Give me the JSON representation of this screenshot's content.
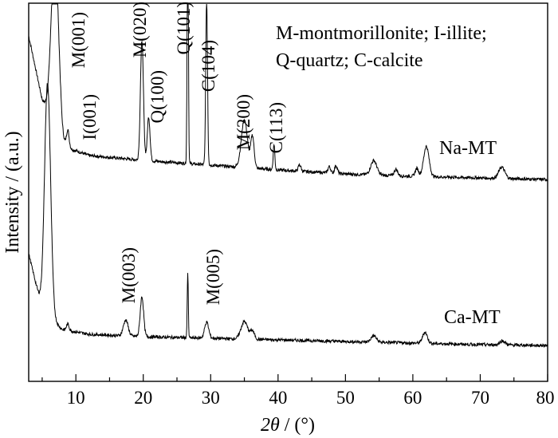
{
  "chart_data": {
    "type": "line",
    "xlabel": "2θ / (°)",
    "xlabel_parts": {
      "symbol": "2",
      "theta": "θ",
      "unit": " / (°)"
    },
    "ylabel": "Intensity / (a.u.)",
    "xlim": [
      3,
      80
    ],
    "xticks": [
      10,
      20,
      30,
      40,
      50,
      60,
      70,
      80
    ],
    "grid": false,
    "legend_text": {
      "line1": "M-montmorillonite; I-illite;",
      "line2": "Q-quartz; C-calcite"
    },
    "series": [
      {
        "name": "Na-MT",
        "baseline": [
          [
            3,
            180
          ],
          [
            5,
            100
          ],
          [
            8,
            42
          ],
          [
            12,
            30
          ],
          [
            20,
            24
          ],
          [
            30,
            18
          ],
          [
            40,
            12
          ],
          [
            50,
            7
          ],
          [
            60,
            4
          ],
          [
            70,
            2
          ],
          [
            80,
            0
          ]
        ],
        "peaks": [
          {
            "x": 6.9,
            "h": 220,
            "w": 0.55,
            "label": "M(001)"
          },
          {
            "x": 8.8,
            "h": 22,
            "w": 0.2,
            "label": "I(001)"
          },
          {
            "x": 19.8,
            "h": 150,
            "w": 0.22,
            "label": "M(020)"
          },
          {
            "x": 20.8,
            "h": 55,
            "w": 0.2,
            "label": "Q(100)"
          },
          {
            "x": 26.6,
            "h": 330,
            "w": 0.09,
            "label": "Q(101)"
          },
          {
            "x": 29.4,
            "h": 210,
            "w": 0.13,
            "label": "C(104)"
          },
          {
            "x": 35.0,
            "h": 60,
            "w": 0.45,
            "label": "M(200)"
          },
          {
            "x": 36.2,
            "h": 40,
            "w": 0.25
          },
          {
            "x": 39.4,
            "h": 32,
            "w": 0.12,
            "label": "C(113)"
          },
          {
            "x": 43.2,
            "h": 8,
            "w": 0.2
          },
          {
            "x": 47.6,
            "h": 8,
            "w": 0.2
          },
          {
            "x": 48.6,
            "h": 10,
            "w": 0.2
          },
          {
            "x": 54.2,
            "h": 18,
            "w": 0.45
          },
          {
            "x": 57.5,
            "h": 8,
            "w": 0.25
          },
          {
            "x": 60.6,
            "h": 10,
            "w": 0.25
          },
          {
            "x": 62.0,
            "h": 38,
            "w": 0.4
          },
          {
            "x": 73.2,
            "h": 14,
            "w": 0.45
          }
        ]
      },
      {
        "name": "Ca-MT",
        "baseline": [
          [
            3,
            115
          ],
          [
            5,
            45
          ],
          [
            8,
            20
          ],
          [
            12,
            14
          ],
          [
            20,
            11
          ],
          [
            30,
            9
          ],
          [
            40,
            7
          ],
          [
            50,
            5
          ],
          [
            60,
            3
          ],
          [
            70,
            1
          ],
          [
            80,
            0
          ]
        ],
        "peaks": [
          {
            "x": 5.8,
            "h": 290,
            "w": 0.45
          },
          {
            "x": 8.8,
            "h": 8,
            "w": 0.2
          },
          {
            "x": 17.4,
            "h": 20,
            "w": 0.35,
            "label": "M(003)"
          },
          {
            "x": 19.8,
            "h": 50,
            "w": 0.25
          },
          {
            "x": 26.6,
            "h": 80,
            "w": 0.08
          },
          {
            "x": 29.4,
            "h": 20,
            "w": 0.3,
            "label": "M(005)"
          },
          {
            "x": 35.0,
            "h": 22,
            "w": 0.5
          },
          {
            "x": 36.2,
            "h": 10,
            "w": 0.3
          },
          {
            "x": 54.2,
            "h": 8,
            "w": 0.4
          },
          {
            "x": 61.8,
            "h": 14,
            "w": 0.35
          },
          {
            "x": 73.3,
            "h": 5,
            "w": 0.4
          }
        ]
      }
    ]
  }
}
